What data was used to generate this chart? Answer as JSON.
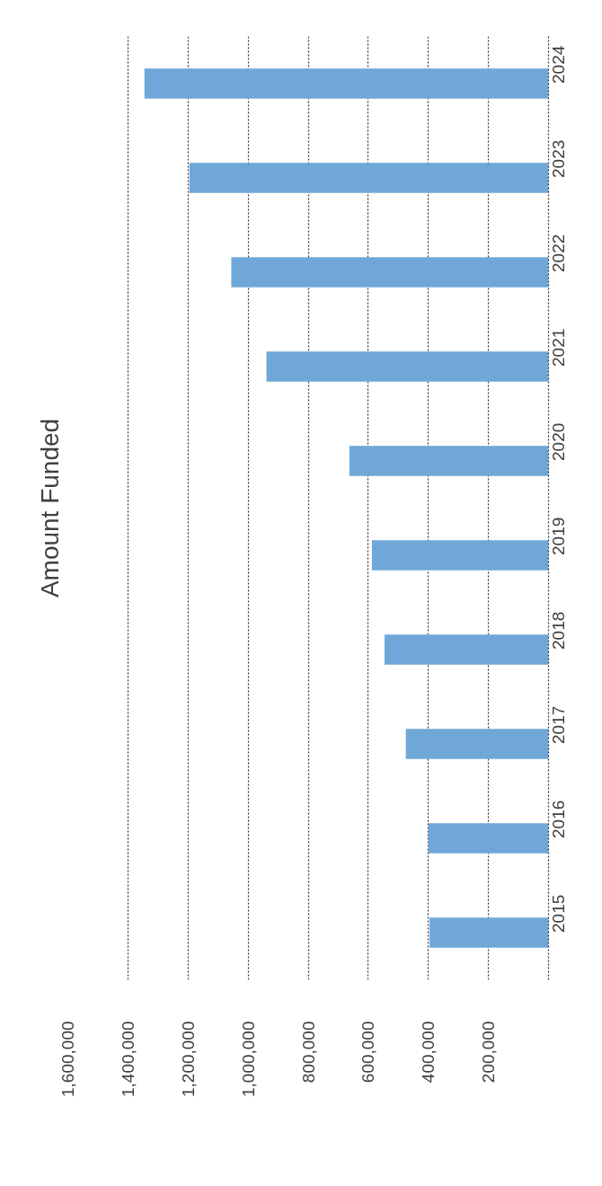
{
  "chart_data": {
    "type": "bar",
    "orientation": "horizontal",
    "title": "Amount Funded",
    "categories": [
      "2024",
      "2023",
      "2022",
      "2021",
      "2020",
      "2019",
      "2018",
      "2017",
      "2016",
      "2015"
    ],
    "values": [
      1345000,
      1195000,
      1056000,
      939000,
      663000,
      588000,
      546000,
      475000,
      400000,
      396000
    ],
    "color": "#6fa8d8",
    "xlim": [
      1600000,
      0
    ],
    "xticks": [
      {
        "value": 1600000,
        "label": "1,600,000"
      },
      {
        "value": 1400000,
        "label": "1,400,000"
      },
      {
        "value": 1200000,
        "label": "1,200,000"
      },
      {
        "value": 1000000,
        "label": "1,000,000"
      },
      {
        "value": 800000,
        "label": "800,000"
      },
      {
        "value": 600000,
        "label": "600,000"
      },
      {
        "value": 400000,
        "label": "400,000"
      },
      {
        "value": 200000,
        "label": "200,000"
      }
    ],
    "grid": "x"
  }
}
